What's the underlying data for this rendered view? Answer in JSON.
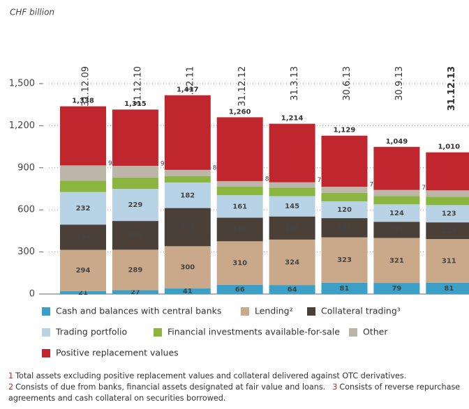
{
  "chart_data": {
    "type": "stacked_bar",
    "y_axis_label": "CHF billion",
    "categories": [
      "31.12.09",
      "31.12.10",
      "31.12.11",
      "31.12.12",
      "31.3.13",
      "30.6.13",
      "30.9.13",
      "31.12.13"
    ],
    "highlight_category_index": 7,
    "ylim": [
      0,
      1500
    ],
    "yticks": [
      0,
      300,
      600,
      900,
      {
        "value": 1200,
        "label": "1,200"
      },
      {
        "value": 1500,
        "label": "1,500"
      }
    ],
    "grid": true,
    "series": [
      {
        "name": "Cash and balances with central banks",
        "color": "#3aa0c8",
        "label_color": "#ffffff",
        "values": [
          21,
          27,
          41,
          66,
          64,
          81,
          79,
          81
        ]
      },
      {
        "name": "Lending²",
        "color": "#c9a98a",
        "label_color": "#333333",
        "values": [
          294,
          289,
          300,
          310,
          324,
          323,
          321,
          311
        ]
      },
      {
        "name": "Collateral trading³",
        "color": "#4a4038",
        "label_color": "#ffffff",
        "values": [
          180,
          205,
          272,
          168,
          165,
          137,
          115,
          119
        ]
      },
      {
        "name": "Trading portfolio",
        "color": "#b9d3e6",
        "label_color": "#333333",
        "values": [
          232,
          229,
          182,
          161,
          145,
          120,
          124,
          123
        ]
      },
      {
        "name": "Financial investments available-for-sale",
        "color": "#8ab53f",
        "values": [
          80,
          80,
          45,
          60,
          60,
          60,
          60,
          60
        ]
      },
      {
        "name": "Other",
        "color": "#bdb5aa",
        "values": [
          110,
          84,
          45,
          40,
          39,
          44,
          43,
          45
        ]
      },
      {
        "name": "Positive replacement values",
        "color": "#c0262d",
        "values": [
          421,
          401,
          532,
          455,
          417,
          364,
          307,
          271
        ]
      }
    ],
    "total_labels": [
      "1,338",
      "1,315",
      "1,417",
      "1,260",
      "1,214",
      "1,129",
      "1,049",
      "1,010"
    ],
    "subtotal_labels": [
      "917¹",
      "914¹",
      "885¹",
      "805¹",
      "797¹",
      "765¹",
      "742¹",
      "739¹"
    ],
    "footnotes": [
      {
        "marker": "1",
        "text": "Total assets excluding positive replacement values and collateral delivered against OTC derivatives."
      },
      {
        "marker": "2",
        "text": "Consists of due from banks, financial assets designated at fair value and loans."
      },
      {
        "marker": "3",
        "text": "Consists of reverse repurchase agreements and cash collateral on securities borrowed."
      }
    ]
  }
}
